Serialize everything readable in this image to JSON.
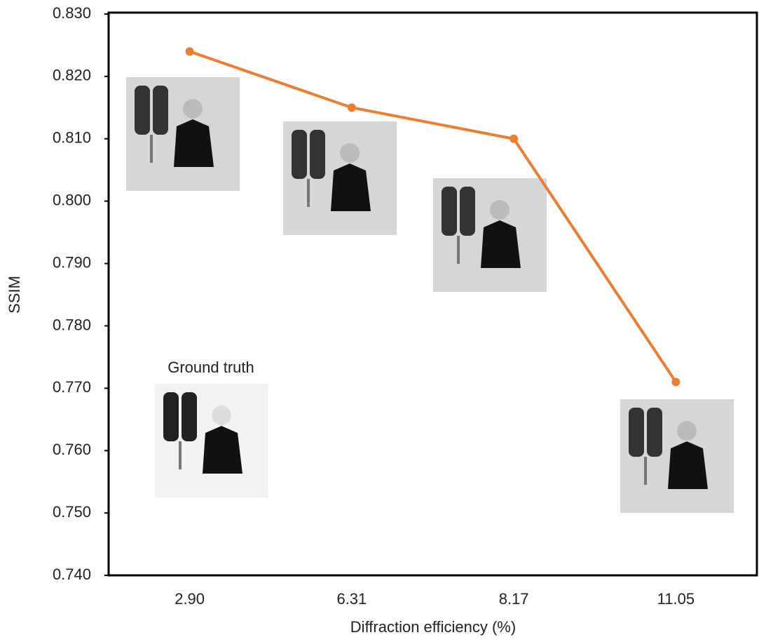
{
  "chart_data": {
    "type": "line",
    "x_label": "Diffraction efficiency (%)",
    "y_label": "SSIM",
    "annotation": "Ground truth",
    "categories": [
      "2.90",
      "6.31",
      "8.17",
      "11.05"
    ],
    "values": [
      0.824,
      0.815,
      0.81,
      0.771
    ],
    "color": "#ed7d31",
    "ylim": [
      0.74,
      0.83
    ],
    "yticks": [
      {
        "value": 0.74,
        "label": "0.740"
      },
      {
        "value": 0.75,
        "label": "0.750"
      },
      {
        "value": 0.76,
        "label": "0.760"
      },
      {
        "value": 0.77,
        "label": "0.770"
      },
      {
        "value": 0.78,
        "label": "0.780"
      },
      {
        "value": 0.79,
        "label": "0.790"
      },
      {
        "value": 0.8,
        "label": "0.800"
      },
      {
        "value": 0.81,
        "label": "0.810"
      },
      {
        "value": 0.82,
        "label": "0.820"
      },
      {
        "value": 0.83,
        "label": "0.830"
      }
    ]
  }
}
